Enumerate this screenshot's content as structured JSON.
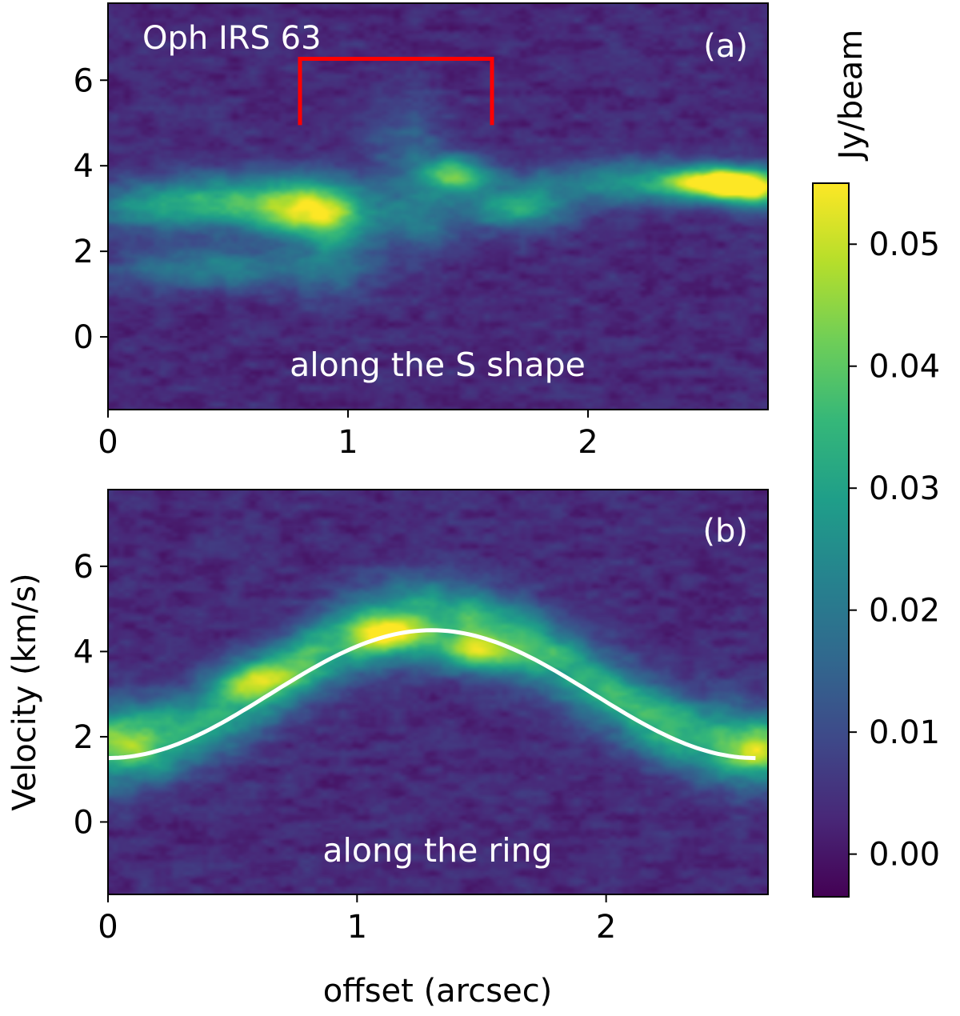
{
  "chart_data": [
    {
      "type": "heatmap",
      "panel_label": "(a)",
      "title": "Oph IRS 63",
      "annotation": "along the S shape",
      "xlabel": "",
      "ylabel": "",
      "xlim": [
        0,
        2.75
      ],
      "ylim": [
        -1.7,
        7.8
      ],
      "xticks": [
        0,
        1,
        2
      ],
      "xtick_labels": [
        "0",
        "1",
        "2"
      ],
      "yticks": [
        0,
        2,
        4,
        6
      ],
      "ytick_labels": [
        "0",
        "2",
        "4",
        "6"
      ],
      "marker_bracket": {
        "x_start": 0.8,
        "x_end": 1.6,
        "y_top": 6.5,
        "y_bottom": 4.95,
        "color": "#ff0000"
      },
      "emission_blobs": [
        {
          "x": 0.85,
          "y": 2.9,
          "sx": 0.16,
          "sy": 0.45,
          "amp": 0.034
        },
        {
          "x": 0.55,
          "y": 3.2,
          "sx": 0.28,
          "sy": 0.45,
          "amp": 0.026
        },
        {
          "x": 0.15,
          "y": 3.0,
          "sx": 0.25,
          "sy": 0.4,
          "amp": 0.016
        },
        {
          "x": 0.45,
          "y": 1.6,
          "sx": 0.3,
          "sy": 0.35,
          "amp": 0.019
        },
        {
          "x": 0.95,
          "y": 2.2,
          "sx": 0.12,
          "sy": 0.9,
          "amp": 0.014
        },
        {
          "x": 1.45,
          "y": 3.8,
          "sx": 0.1,
          "sy": 0.3,
          "amp": 0.033
        },
        {
          "x": 1.7,
          "y": 3.0,
          "sx": 0.15,
          "sy": 0.35,
          "amp": 0.028
        },
        {
          "x": 1.3,
          "y": 2.8,
          "sx": 0.12,
          "sy": 0.6,
          "amp": 0.016
        },
        {
          "x": 1.25,
          "y": 4.5,
          "sx": 0.12,
          "sy": 0.7,
          "amp": 0.011
        },
        {
          "x": 2.25,
          "y": 3.6,
          "sx": 0.35,
          "sy": 0.35,
          "amp": 0.025
        },
        {
          "x": 2.55,
          "y": 3.6,
          "sx": 0.14,
          "sy": 0.25,
          "amp": 0.045
        },
        {
          "x": 2.7,
          "y": 3.4,
          "sx": 0.1,
          "sy": 0.3,
          "amp": 0.03
        }
      ]
    },
    {
      "type": "heatmap",
      "panel_label": "(b)",
      "annotation": "along the ring",
      "xlabel": "offset (arcsec)",
      "ylabel": "Velocity (km/s)",
      "xlim": [
        0,
        2.65
      ],
      "ylim": [
        -1.7,
        7.8
      ],
      "xticks": [
        0,
        1,
        2
      ],
      "xtick_labels": [
        "0",
        "1",
        "2"
      ],
      "yticks": [
        0,
        2,
        4,
        6
      ],
      "ytick_labels": [
        "0",
        "2",
        "4",
        "6"
      ],
      "ring_curve": {
        "type": "line",
        "color": "#ffffff",
        "x0": 0.0,
        "x1": 2.6,
        "v_min": 1.5,
        "v_max": 4.5,
        "peak_x": 1.3
      },
      "emission_ridge": {
        "offset_above_curve": 0.25,
        "sy": 0.65,
        "amp": 0.032
      },
      "emission_blobs": [
        {
          "x": 1.12,
          "y": 4.4,
          "sx": 0.1,
          "sy": 0.3,
          "amp": 0.028
        },
        {
          "x": 1.48,
          "y": 3.95,
          "sx": 0.11,
          "sy": 0.3,
          "amp": 0.028
        },
        {
          "x": 0.6,
          "y": 3.35,
          "sx": 0.12,
          "sy": 0.3,
          "amp": 0.018
        },
        {
          "x": 2.6,
          "y": 1.6,
          "sx": 0.07,
          "sy": 0.3,
          "amp": 0.02
        },
        {
          "x": 0.05,
          "y": 2.0,
          "sx": 0.1,
          "sy": 0.5,
          "amp": 0.012
        }
      ]
    }
  ],
  "colorbar": {
    "label": "Jy/beam",
    "vmin": -0.0035,
    "vmax": 0.055,
    "ticks": [
      0.0,
      0.01,
      0.02,
      0.03,
      0.04,
      0.05
    ],
    "tick_labels": [
      "0.00",
      "0.01",
      "0.02",
      "0.03",
      "0.04",
      "0.05"
    ],
    "colormap": "viridis",
    "colormap_stops": [
      "#440154",
      "#482878",
      "#3e4989",
      "#31688e",
      "#26828e",
      "#1f9e89",
      "#35b779",
      "#6ece58",
      "#b5de2b",
      "#fde725"
    ]
  }
}
